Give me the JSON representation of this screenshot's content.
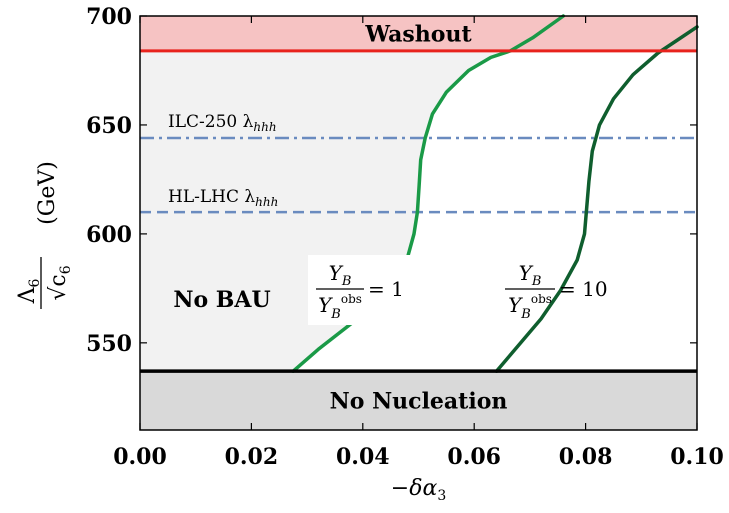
{
  "chart_data": {
    "type": "line",
    "xlabel": "−δα",
    "xlabel_sub": "3",
    "ylabel": "(GeV)",
    "ylabel_fraction": {
      "numerator": "Λ",
      "numerator_sub": "6",
      "denominator": "√c",
      "denominator_sub": "6"
    },
    "xlim": [
      0.0,
      0.1
    ],
    "ylim": [
      510,
      700
    ],
    "xticks": [
      0.0,
      0.02,
      0.04,
      0.06,
      0.08,
      0.1
    ],
    "xtick_labels": [
      "0.00",
      "0.02",
      "0.04",
      "0.06",
      "0.08",
      "0.10"
    ],
    "yticks": [
      550,
      600,
      650,
      700
    ],
    "ytick_labels": [
      "550",
      "600",
      "650",
      "700"
    ],
    "regions": {
      "washout": {
        "label": "Washout",
        "y_from": 684,
        "y_to": 700,
        "fill": "#f6c3c3",
        "edge": "#e8231d"
      },
      "no_nucleation": {
        "label": "No Nucleation",
        "y_from": 510,
        "y_to": 537,
        "fill": "#d9d9d9",
        "edge": "#000000"
      },
      "no_bau": {
        "label": "No BAU",
        "fill": "#f2f2f2"
      }
    },
    "hlines": [
      {
        "label": "ILC-250 λ",
        "label_sub": "hhh",
        "y": 644,
        "style": "dashdot",
        "color": "#6a8bbf"
      },
      {
        "label": "HL-LHC λ",
        "label_sub": "hhh",
        "y": 610,
        "style": "dashed",
        "color": "#6a8bbf"
      }
    ],
    "series": [
      {
        "ratio_label": {
          "numerator": "Y",
          "numerator_sub": "B",
          "denominator": "Y",
          "denominator_sub": "B",
          "denominator_sup": "obs",
          "rhs": "= 1"
        },
        "color": "#1a9a47",
        "x": [
          0.0275,
          0.032,
          0.037,
          0.042,
          0.0455,
          0.048,
          0.0492,
          0.0498,
          0.0501,
          0.0504,
          0.0512,
          0.0525,
          0.055,
          0.059,
          0.063,
          0.0665,
          0.0705,
          0.076
        ],
        "y": [
          537,
          547,
          557,
          567,
          578,
          589,
          600,
          610,
          622,
          634,
          644,
          655,
          665,
          675,
          681,
          684,
          690,
          700
        ]
      },
      {
        "ratio_label": {
          "numerator": "Y",
          "numerator_sub": "B",
          "denominator": "Y",
          "denominator_sub": "B",
          "denominator_sup": "obs",
          "rhs": "= 10"
        },
        "color": "#0f5e2e",
        "x": [
          0.064,
          0.068,
          0.072,
          0.0755,
          0.0785,
          0.0798,
          0.0802,
          0.0806,
          0.0812,
          0.0825,
          0.085,
          0.0885,
          0.093,
          0.0965,
          0.1
        ],
        "y": [
          537,
          549,
          561,
          574,
          588,
          600,
          612,
          624,
          638,
          650,
          662,
          673,
          683,
          689,
          695
        ]
      }
    ]
  }
}
